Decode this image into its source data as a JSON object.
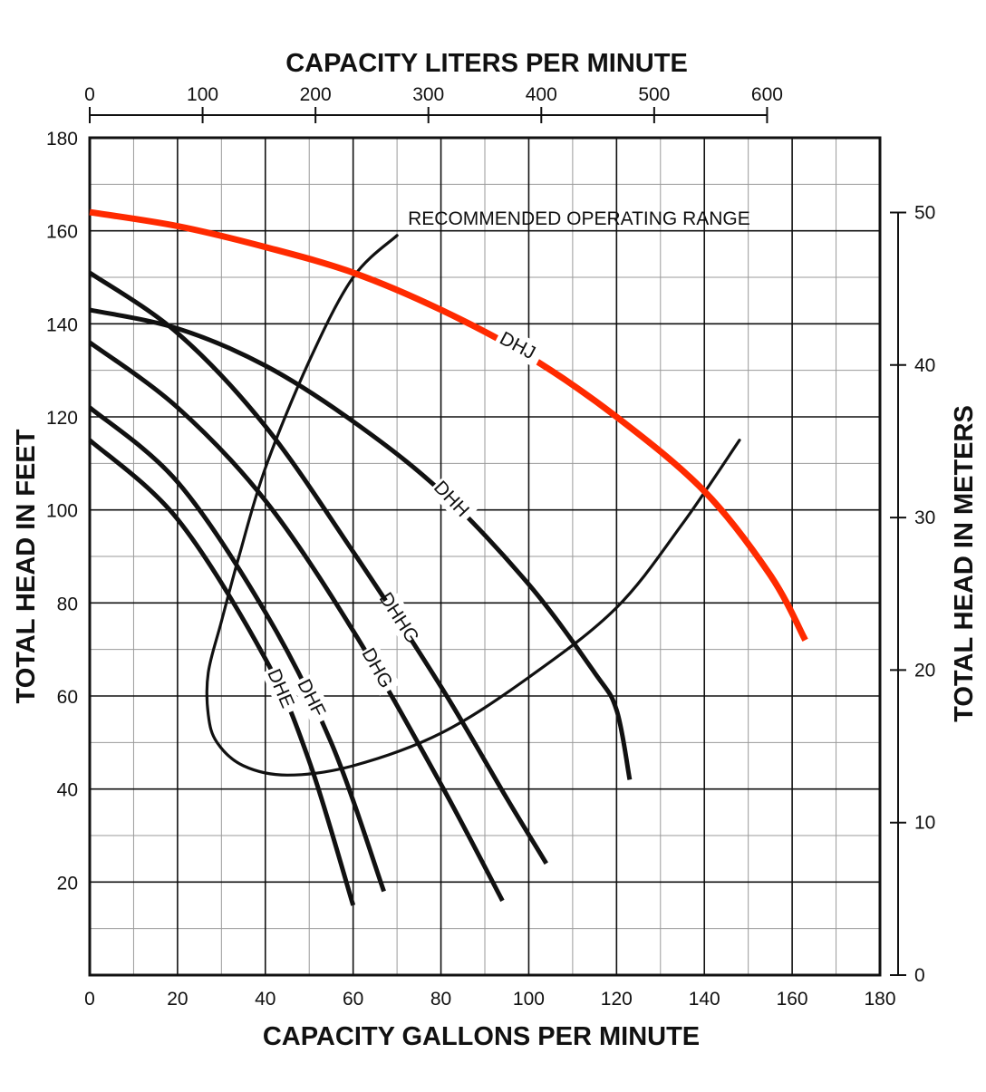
{
  "chart_data": {
    "type": "line",
    "top_axis": {
      "label": "CAPACITY LITERS PER MINUTE",
      "range": [
        0,
        700
      ],
      "ticks": [
        0,
        100,
        200,
        300,
        400,
        500,
        600
      ],
      "tick_labels": [
        "0",
        "100",
        "200",
        "300",
        "400",
        "500",
        "600"
      ]
    },
    "bottom_axis": {
      "label": "CAPACITY GALLONS PER MINUTE",
      "range": [
        0,
        180
      ],
      "ticks": [
        0,
        20,
        40,
        60,
        80,
        100,
        120,
        140,
        160,
        180
      ],
      "tick_labels": [
        "0",
        "20",
        "40",
        "60",
        "80",
        "100",
        "120",
        "140",
        "160",
        "180"
      ]
    },
    "left_axis": {
      "label": "TOTAL HEAD IN FEET",
      "range": [
        0,
        180
      ],
      "ticks": [
        20,
        40,
        60,
        80,
        100,
        120,
        140,
        160,
        180
      ],
      "tick_labels": [
        "20",
        "40",
        "60",
        "80",
        "100",
        "120",
        "140",
        "160",
        "180"
      ]
    },
    "right_axis": {
      "label": "TOTAL HEAD IN METERS",
      "range": [
        0,
        54.9
      ],
      "ticks": [
        0,
        10,
        20,
        30,
        40,
        50
      ],
      "tick_labels": [
        "0",
        "10",
        "20",
        "30",
        "40",
        "50"
      ]
    },
    "grid": true,
    "grid_minor_step": {
      "x": 10,
      "y": 10
    },
    "series": [
      {
        "name": "DHJ",
        "color": "#ff2a00",
        "x": [
          0,
          20,
          40,
          60,
          80,
          100,
          120,
          140,
          155,
          163
        ],
        "y": [
          164,
          161,
          156.5,
          151,
          143,
          133,
          120,
          104,
          86,
          72
        ]
      },
      {
        "name": "DHH",
        "color": "#111111",
        "x": [
          0,
          20,
          40,
          60,
          80,
          100,
          115,
          120,
          123
        ],
        "y": [
          143,
          139,
          131,
          119,
          104,
          84,
          65,
          57,
          42
        ]
      },
      {
        "name": "DHHG",
        "color": "#111111",
        "x": [
          0,
          20,
          40,
          60,
          80,
          95,
          104
        ],
        "y": [
          151,
          138,
          118,
          91,
          62,
          38,
          24
        ]
      },
      {
        "name": "DHG",
        "color": "#111111",
        "x": [
          0,
          20,
          40,
          60,
          80,
          94
        ],
        "y": [
          136,
          122,
          102,
          74,
          41,
          16
        ]
      },
      {
        "name": "DHF",
        "color": "#111111",
        "x": [
          0,
          20,
          40,
          55,
          67
        ],
        "y": [
          122,
          106,
          78,
          50,
          18
        ]
      },
      {
        "name": "DHE",
        "color": "#111111",
        "x": [
          0,
          20,
          40,
          50,
          60
        ],
        "y": [
          115,
          98,
          68,
          46,
          15
        ]
      }
    ],
    "operating_range": {
      "label": "RECOMMENDED OPERATING RANGE",
      "x": [
        70,
        60,
        50,
        40,
        34,
        30,
        27,
        27,
        29,
        35,
        45,
        60,
        80,
        100,
        120,
        135,
        148
      ],
      "y": [
        159,
        150,
        132,
        109,
        90,
        76,
        65,
        56,
        50,
        45,
        43,
        45,
        52,
        64,
        79,
        97,
        115
      ]
    }
  }
}
